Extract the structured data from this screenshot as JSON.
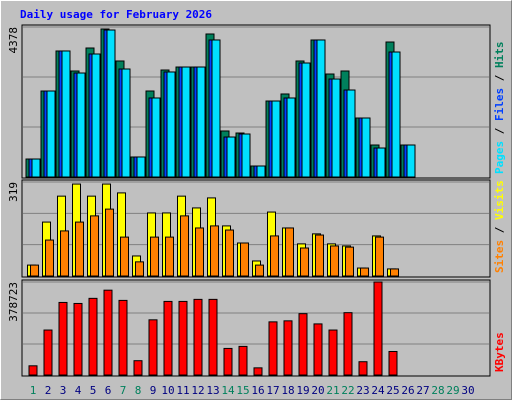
{
  "chart_data": {
    "title": "Daily usage for February 2026",
    "categories": [
      "1",
      "2",
      "3",
      "4",
      "5",
      "6",
      "7",
      "8",
      "9",
      "10",
      "11",
      "12",
      "13",
      "14",
      "15",
      "16",
      "17",
      "18",
      "19",
      "20",
      "21",
      "22",
      "23",
      "24",
      "25",
      "26",
      "27",
      "28",
      "29",
      "30"
    ],
    "category_colors": [
      "#00805c",
      "#000080",
      "#000080",
      "#000080",
      "#000080",
      "#000080",
      "#00805c",
      "#00805c",
      "#000080",
      "#000080",
      "#000080",
      "#000080",
      "#000080",
      "#00805c",
      "#00805c",
      "#000080",
      "#000080",
      "#000080",
      "#000080",
      "#000080",
      "#00805c",
      "#00805c",
      "#000080",
      "#000080",
      "#000080",
      "#000080",
      "#000080",
      "#00805c",
      "#00805c",
      "#000080"
    ],
    "panels": [
      {
        "type": "bar",
        "ylim": [
          0,
          4378
        ],
        "yticks": [
          4378
        ],
        "series": [
          {
            "name": "Hits",
            "color": "#00805c",
            "values": [
              525,
              2510,
              3678,
              3094,
              3765,
              4320,
              3386,
              584,
              2510,
              3123,
              3210,
              3210,
              4174,
              1343,
              1284,
              321,
              2218,
              2423,
              3386,
              3999,
              3006,
              3094,
              1722,
              934,
              3940,
              934,
              null,
              null,
              null,
              null
            ]
          },
          {
            "name": "Files",
            "color": "#0040ff",
            "values": [
              525,
              2510,
              3678,
              3035,
              3590,
              4290,
              3152,
              584,
              2306,
              3065,
              3210,
              3210,
              3999,
              1167,
              1255,
              321,
              2218,
              2306,
              3327,
              3999,
              2860,
              2539,
              1722,
              846,
              3648,
              934,
              null,
              null,
              null,
              null
            ]
          },
          {
            "name": "Pages",
            "color": "#00e0ff",
            "values": [
              525,
              2510,
              3678,
              3035,
              3590,
              4290,
              3152,
              584,
              2306,
              3065,
              3210,
              3210,
              3999,
              1167,
              1255,
              321,
              2218,
              2306,
              3327,
              3999,
              2860,
              2539,
              1722,
              846,
              3648,
              934,
              null,
              null,
              null,
              null
            ]
          }
        ]
      },
      {
        "type": "bar",
        "ylim": [
          0,
          319
        ],
        "yticks": [
          319
        ],
        "series": [
          {
            "name": "Visits",
            "color": "#ffff00",
            "values": [
              37,
              183,
              271,
              312,
              271,
              312,
              282,
              68,
              214,
              214,
              271,
              231,
              265,
              170,
              112,
              51,
              217,
              163,
              109,
              143,
              109,
              102,
              27,
              136,
              24,
              null,
              null,
              null,
              null,
              null
            ]
          },
          {
            "name": "Sites",
            "color": "#ff8000",
            "values": [
              37,
              122,
              153,
              183,
              204,
              227,
              132,
              48,
              132,
              132,
              204,
              163,
              170,
              156,
              112,
              37,
              136,
              163,
              95,
              139,
              102,
              98,
              27,
              132,
              24,
              null,
              null,
              null,
              null,
              null
            ]
          }
        ]
      },
      {
        "type": "bar",
        "ylim": [
          0,
          378723
        ],
        "yticks": [
          378723
        ],
        "series": [
          {
            "name": "KBytes",
            "color": "#ff0000",
            "values": [
              37456,
              183123,
              295489,
              291327,
              312136,
              345430,
              303813,
              58265,
              224740,
              299651,
              299651,
              307975,
              307975,
              108206,
              116530,
              29133,
              216416,
              220578,
              249707,
              208092,
              183123,
              253869,
              54103,
              378723,
              95722,
              null,
              null,
              null,
              null,
              null
            ]
          }
        ]
      }
    ]
  }
}
